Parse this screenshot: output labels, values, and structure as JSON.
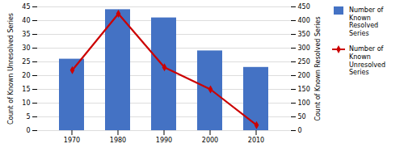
{
  "chart_data": {
    "type": "bar",
    "categories": [
      "1970",
      "1980",
      "1990",
      "2000",
      "2010"
    ],
    "series": [
      {
        "name": "Number of\nKnown\nResolved\nSeries",
        "type": "bar",
        "color": "#4472C4",
        "values": [
          26,
          44,
          41,
          29,
          23
        ]
      },
      {
        "name": "Number of\nKnown\nUnresolved\nSeries",
        "type": "line",
        "axis": "y2",
        "color": "#CC0000",
        "marker": "diamond",
        "values": [
          220,
          425,
          230,
          150,
          20
        ]
      }
    ],
    "ylabel": "Count of Known Unresolved Series",
    "y2label": "Count of Known Resolved Series",
    "ylim": [
      0,
      45
    ],
    "yticks": [
      0,
      5,
      10,
      15,
      20,
      25,
      30,
      35,
      40,
      45
    ],
    "y2lim": [
      0,
      450
    ],
    "y2ticks": [
      0,
      50,
      100,
      150,
      200,
      250,
      300,
      350,
      400,
      450
    ],
    "grid": true,
    "legend": "right"
  }
}
